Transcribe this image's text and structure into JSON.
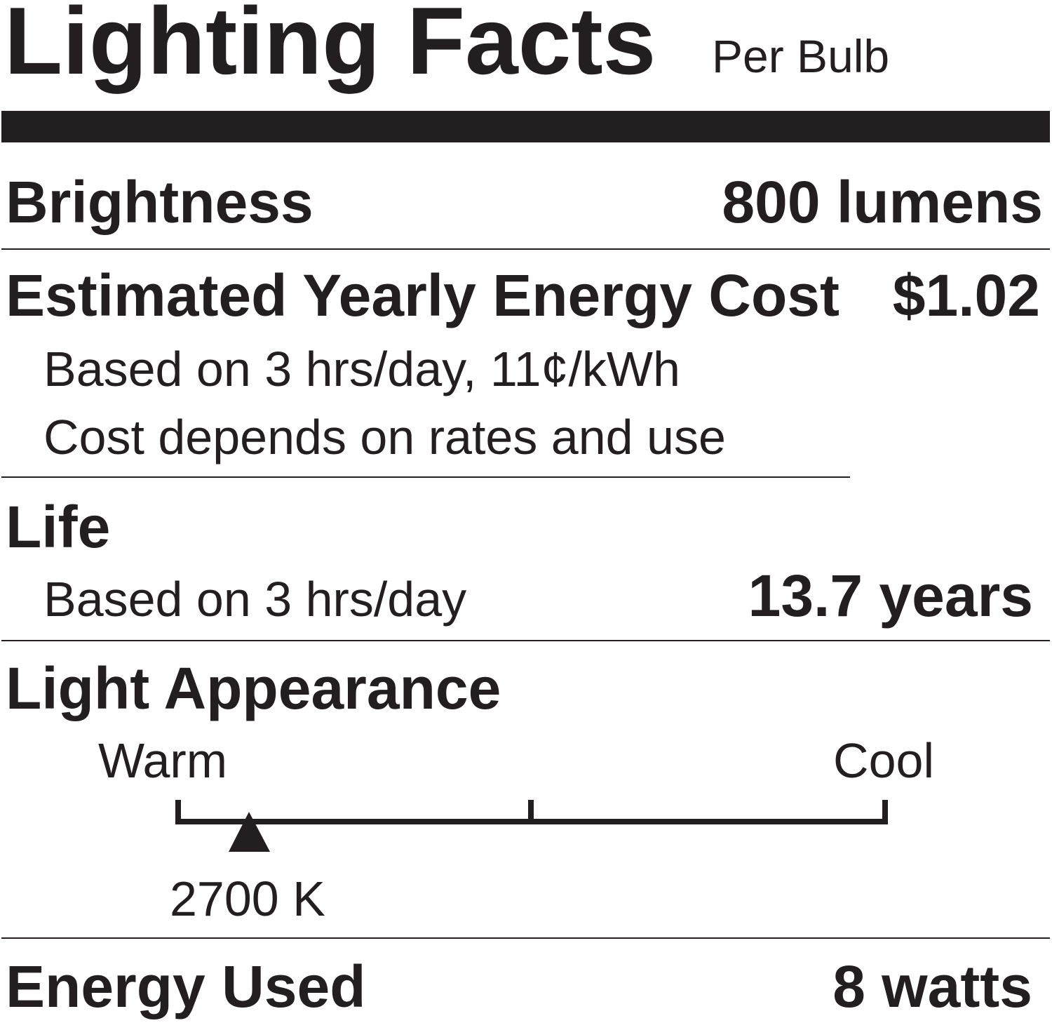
{
  "header": {
    "title": "Lighting Facts",
    "subtitle": "Per Bulb"
  },
  "brightness": {
    "label": "Brightness",
    "value": "800 lumens"
  },
  "cost": {
    "label": "Estimated Yearly Energy Cost",
    "value": "$1.02",
    "notes": [
      "Based on 3 hrs/day, 11¢/kWh",
      "Cost depends on rates and use"
    ]
  },
  "life": {
    "label": "Life",
    "note": "Based on 3 hrs/day",
    "value": "13.7 years"
  },
  "appearance": {
    "label": "Light Appearance",
    "warm": "Warm",
    "cool": "Cool",
    "value": "2700 K"
  },
  "energy": {
    "label": "Energy Used",
    "value": "8 watts"
  }
}
